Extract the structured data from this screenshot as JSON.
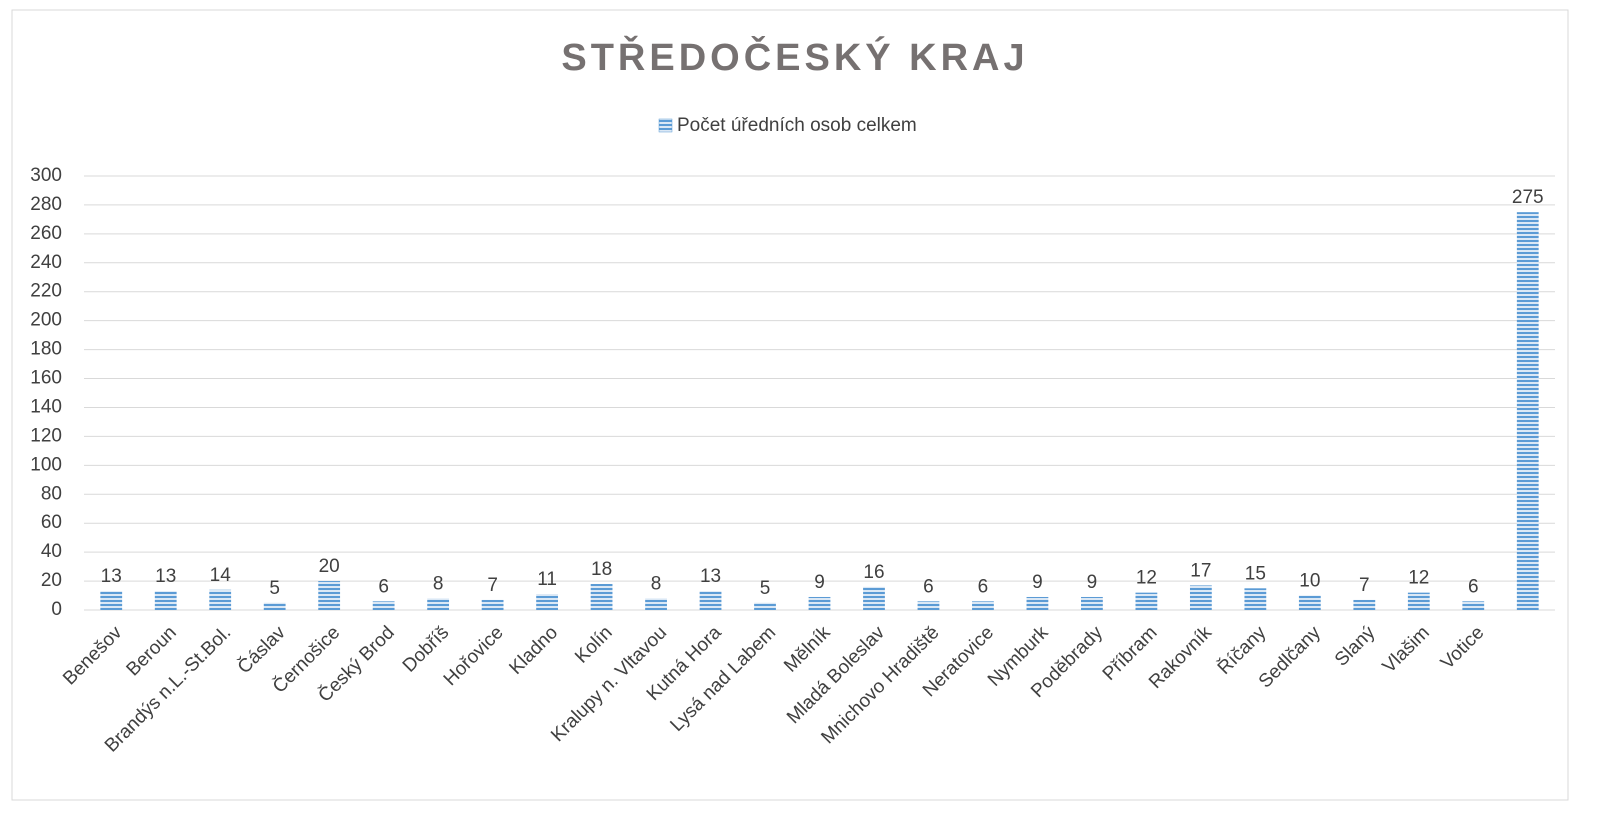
{
  "chart_data": {
    "type": "bar",
    "title": "STŘEDOČESKÝ KRAJ",
    "categories": [
      "Benešov",
      "Beroun",
      "Brandýs n.L.-St.Bol.",
      "Čáslav",
      "Černošice",
      "Český Brod",
      "Dobříš",
      "Hořovice",
      "Kladno",
      "Kolín",
      "Kralupy n. Vltavou",
      "Kutná Hora",
      "Lysá nad Labem",
      "Mělník",
      "Mladá Boleslav",
      "Mnichovo Hradiště",
      "Neratovice",
      "Nymburk",
      "Poděbrady",
      "Příbram",
      "Rakovník",
      "Říčany",
      "Sedlčany",
      "Slaný",
      "Vlašim",
      "Votice",
      null
    ],
    "series": [
      {
        "name": "Počet úředních osob celkem",
        "color": "#5b9bd5",
        "values": [
          13,
          13,
          14,
          5,
          20,
          6,
          8,
          7,
          11,
          18,
          8,
          13,
          5,
          9,
          16,
          6,
          6,
          9,
          9,
          12,
          17,
          15,
          10,
          7,
          12,
          6,
          275
        ]
      }
    ],
    "ylim": [
      0,
      300
    ],
    "yticks": [
      0,
      20,
      40,
      60,
      80,
      100,
      120,
      140,
      160,
      180,
      200,
      220,
      240,
      260,
      280,
      300
    ],
    "grid": true,
    "legend": "top"
  }
}
